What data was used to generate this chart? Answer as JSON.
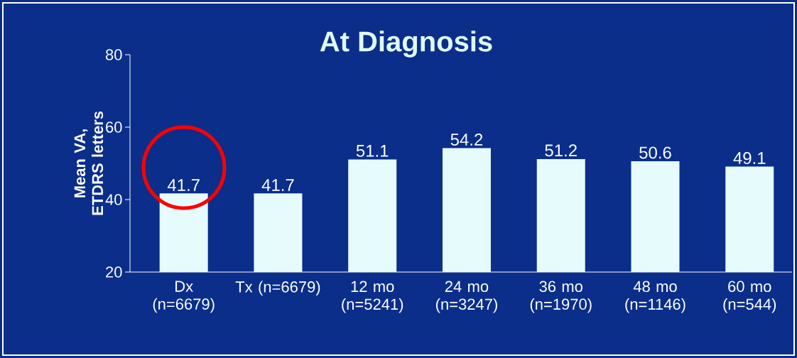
{
  "chart_data": {
    "type": "bar",
    "title": "At Diagnosis",
    "ylabel": "Mean VA, ETDRS letters",
    "categories": [
      "Dx (n=6679)",
      "Tx (n=6679)",
      "12 mo (n=5241)",
      "24 mo (n=3247)",
      "36 mo (n=1970)",
      "48 mo (n=1146)",
      "60 mo (n=544)"
    ],
    "values": [
      41.7,
      41.7,
      51.1,
      54.2,
      51.2,
      50.6,
      49.1
    ],
    "color": "#e6fbfb",
    "ylim": [
      20,
      80
    ],
    "yticks": [
      20,
      40,
      60,
      80
    ],
    "data_labels": true
  }
}
